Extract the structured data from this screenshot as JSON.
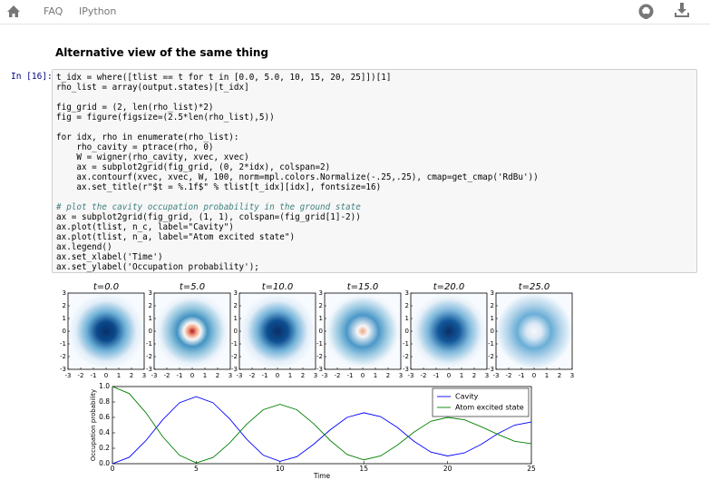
{
  "nav": {
    "links": [
      "FAQ",
      "IPython"
    ]
  },
  "heading": "Alternative view of the same thing",
  "cell": {
    "prompt": "In [16]:",
    "code_blocks": [
      [
        "t_idx = where([tlist == t for t in [0.0, 5.0, 10, 15, 20, 25]])[1]",
        "rho_list = array(output.states)[t_idx]"
      ],
      [
        "fig_grid = (2, len(rho_list)*2)",
        "fig = figure(figsize=(2.5*len(rho_list),5))"
      ],
      [
        "for idx, rho in enumerate(rho_list):",
        "    rho_cavity = ptrace(rho, 0)",
        "    W = wigner(rho_cavity, xvec, xvec)",
        "    ax = subplot2grid(fig_grid, (0, 2*idx), colspan=2)",
        "    ax.contourf(xvec, xvec, W, 100, norm=mpl.colors.Normalize(-.25,.25), cmap=get_cmap('RdBu'))",
        "    ax.set_title(r\"$t = %.1f$\" % tlist[t_idx][idx], fontsize=16)"
      ],
      [
        "# plot the cavity occupation probability in the ground state",
        "ax = subplot2grid(fig_grid, (1, 1), colspan=(fig_grid[1]-2))",
        "ax.plot(tlist, n_c, label=\"Cavity\")",
        "ax.plot(tlist, n_a, label=\"Atom excited state\")",
        "ax.legend()",
        "ax.set_xlabel('Time')",
        "ax.set_ylabel('Occupation probability');"
      ]
    ]
  },
  "wigner": {
    "titles": [
      "t=0.0",
      "t=5.0",
      "t=10.0",
      "t=15.0",
      "t=20.0",
      "t=25.0"
    ],
    "ticks": [
      -3,
      -2,
      -1,
      0,
      1,
      2,
      3
    ]
  },
  "chart_data": {
    "type": "line",
    "x": [
      0,
      1,
      2,
      3,
      4,
      5,
      6,
      7,
      8,
      9,
      10,
      11,
      12,
      13,
      14,
      15,
      16,
      17,
      18,
      19,
      20,
      21,
      22,
      23,
      24,
      25
    ],
    "series": [
      {
        "name": "Cavity",
        "color": "#0000ff",
        "values": [
          0,
          0.083,
          0.3,
          0.57,
          0.79,
          0.87,
          0.79,
          0.58,
          0.32,
          0.11,
          0.03,
          0.09,
          0.25,
          0.44,
          0.6,
          0.66,
          0.61,
          0.47,
          0.29,
          0.15,
          0.1,
          0.14,
          0.25,
          0.39,
          0.5,
          0.54
        ]
      },
      {
        "name": "Atom excited state",
        "color": "#008000",
        "values": [
          1,
          0.91,
          0.66,
          0.35,
          0.11,
          0.01,
          0.08,
          0.27,
          0.51,
          0.7,
          0.77,
          0.7,
          0.52,
          0.3,
          0.12,
          0.05,
          0.1,
          0.24,
          0.41,
          0.55,
          0.6,
          0.57,
          0.48,
          0.38,
          0.29,
          0.26
        ]
      }
    ],
    "xlim": [
      0,
      25
    ],
    "ylim": [
      0,
      1
    ],
    "xticks": [
      0,
      5,
      10,
      15,
      20,
      25
    ],
    "yticks": [
      {
        "value": 0,
        "label": "0.0"
      },
      {
        "value": 0.2,
        "label": "0.2"
      },
      {
        "value": 0.4,
        "label": "0.4"
      },
      {
        "value": 0.6,
        "label": "0.6"
      },
      {
        "value": 0.8,
        "label": "0.8"
      },
      {
        "value": 1,
        "label": "1.0"
      }
    ],
    "xlabel": "Time",
    "ylabel": "Occupation probability",
    "legend": "upper right"
  }
}
